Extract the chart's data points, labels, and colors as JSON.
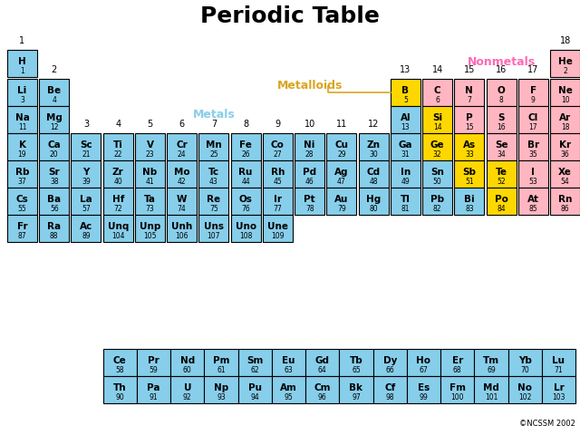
{
  "title": "Periodic Table",
  "background": "#ffffff",
  "colors": {
    "metal": "#87CEEB",
    "metalloid": "#FFD700",
    "nonmetal": "#FFB6C1"
  },
  "label_metals": "Metals",
  "label_metals_color": "#87CEEB",
  "label_metalloids": "Metalloids",
  "label_metalloids_color": "#DAA520",
  "label_nonmetals": "Nonmetals",
  "label_nonmetals_color": "#FF69B4",
  "credit": "©NCSSM 2002",
  "elements": [
    {
      "sym": "H",
      "num": "1",
      "row": 1,
      "col": 1,
      "type": "metal"
    },
    {
      "sym": "He",
      "num": "2",
      "row": 1,
      "col": 18,
      "type": "nonmetal"
    },
    {
      "sym": "Li",
      "num": "3",
      "row": 2,
      "col": 1,
      "type": "metal"
    },
    {
      "sym": "Be",
      "num": "4",
      "row": 2,
      "col": 2,
      "type": "metal"
    },
    {
      "sym": "B",
      "num": "5",
      "row": 2,
      "col": 13,
      "type": "metalloid"
    },
    {
      "sym": "C",
      "num": "6",
      "row": 2,
      "col": 14,
      "type": "nonmetal"
    },
    {
      "sym": "N",
      "num": "7",
      "row": 2,
      "col": 15,
      "type": "nonmetal"
    },
    {
      "sym": "O",
      "num": "8",
      "row": 2,
      "col": 16,
      "type": "nonmetal"
    },
    {
      "sym": "F",
      "num": "9",
      "row": 2,
      "col": 17,
      "type": "nonmetal"
    },
    {
      "sym": "Ne",
      "num": "10",
      "row": 2,
      "col": 18,
      "type": "nonmetal"
    },
    {
      "sym": "Na",
      "num": "11",
      "row": 3,
      "col": 1,
      "type": "metal"
    },
    {
      "sym": "Mg",
      "num": "12",
      "row": 3,
      "col": 2,
      "type": "metal"
    },
    {
      "sym": "Al",
      "num": "13",
      "row": 3,
      "col": 13,
      "type": "metal"
    },
    {
      "sym": "Si",
      "num": "14",
      "row": 3,
      "col": 14,
      "type": "metalloid"
    },
    {
      "sym": "P",
      "num": "15",
      "row": 3,
      "col": 15,
      "type": "nonmetal"
    },
    {
      "sym": "S",
      "num": "16",
      "row": 3,
      "col": 16,
      "type": "nonmetal"
    },
    {
      "sym": "Cl",
      "num": "17",
      "row": 3,
      "col": 17,
      "type": "nonmetal"
    },
    {
      "sym": "Ar",
      "num": "18",
      "row": 3,
      "col": 18,
      "type": "nonmetal"
    },
    {
      "sym": "K",
      "num": "19",
      "row": 4,
      "col": 1,
      "type": "metal"
    },
    {
      "sym": "Ca",
      "num": "20",
      "row": 4,
      "col": 2,
      "type": "metal"
    },
    {
      "sym": "Sc",
      "num": "21",
      "row": 4,
      "col": 3,
      "type": "metal"
    },
    {
      "sym": "Ti",
      "num": "22",
      "row": 4,
      "col": 4,
      "type": "metal"
    },
    {
      "sym": "V",
      "num": "23",
      "row": 4,
      "col": 5,
      "type": "metal"
    },
    {
      "sym": "Cr",
      "num": "24",
      "row": 4,
      "col": 6,
      "type": "metal"
    },
    {
      "sym": "Mn",
      "num": "25",
      "row": 4,
      "col": 7,
      "type": "metal"
    },
    {
      "sym": "Fe",
      "num": "26",
      "row": 4,
      "col": 8,
      "type": "metal"
    },
    {
      "sym": "Co",
      "num": "27",
      "row": 4,
      "col": 9,
      "type": "metal"
    },
    {
      "sym": "Ni",
      "num": "28",
      "row": 4,
      "col": 10,
      "type": "metal"
    },
    {
      "sym": "Cu",
      "num": "29",
      "row": 4,
      "col": 11,
      "type": "metal"
    },
    {
      "sym": "Zn",
      "num": "30",
      "row": 4,
      "col": 12,
      "type": "metal"
    },
    {
      "sym": "Ga",
      "num": "31",
      "row": 4,
      "col": 13,
      "type": "metal"
    },
    {
      "sym": "Ge",
      "num": "32",
      "row": 4,
      "col": 14,
      "type": "metalloid"
    },
    {
      "sym": "As",
      "num": "33",
      "row": 4,
      "col": 15,
      "type": "metalloid"
    },
    {
      "sym": "Se",
      "num": "34",
      "row": 4,
      "col": 16,
      "type": "nonmetal"
    },
    {
      "sym": "Br",
      "num": "35",
      "row": 4,
      "col": 17,
      "type": "nonmetal"
    },
    {
      "sym": "Kr",
      "num": "36",
      "row": 4,
      "col": 18,
      "type": "nonmetal"
    },
    {
      "sym": "Rb",
      "num": "37",
      "row": 5,
      "col": 1,
      "type": "metal"
    },
    {
      "sym": "Sr",
      "num": "38",
      "row": 5,
      "col": 2,
      "type": "metal"
    },
    {
      "sym": "Y",
      "num": "39",
      "row": 5,
      "col": 3,
      "type": "metal"
    },
    {
      "sym": "Zr",
      "num": "40",
      "row": 5,
      "col": 4,
      "type": "metal"
    },
    {
      "sym": "Nb",
      "num": "41",
      "row": 5,
      "col": 5,
      "type": "metal"
    },
    {
      "sym": "Mo",
      "num": "42",
      "row": 5,
      "col": 6,
      "type": "metal"
    },
    {
      "sym": "Tc",
      "num": "43",
      "row": 5,
      "col": 7,
      "type": "metal"
    },
    {
      "sym": "Ru",
      "num": "44",
      "row": 5,
      "col": 8,
      "type": "metal"
    },
    {
      "sym": "Rh",
      "num": "45",
      "row": 5,
      "col": 9,
      "type": "metal"
    },
    {
      "sym": "Pd",
      "num": "46",
      "row": 5,
      "col": 10,
      "type": "metal"
    },
    {
      "sym": "Ag",
      "num": "47",
      "row": 5,
      "col": 11,
      "type": "metal"
    },
    {
      "sym": "Cd",
      "num": "48",
      "row": 5,
      "col": 12,
      "type": "metal"
    },
    {
      "sym": "In",
      "num": "49",
      "row": 5,
      "col": 13,
      "type": "metal"
    },
    {
      "sym": "Sn",
      "num": "50",
      "row": 5,
      "col": 14,
      "type": "metal"
    },
    {
      "sym": "Sb",
      "num": "51",
      "row": 5,
      "col": 15,
      "type": "metalloid"
    },
    {
      "sym": "Te",
      "num": "52",
      "row": 5,
      "col": 16,
      "type": "metalloid"
    },
    {
      "sym": "I",
      "num": "53",
      "row": 5,
      "col": 17,
      "type": "nonmetal"
    },
    {
      "sym": "Xe",
      "num": "54",
      "row": 5,
      "col": 18,
      "type": "nonmetal"
    },
    {
      "sym": "Cs",
      "num": "55",
      "row": 6,
      "col": 1,
      "type": "metal"
    },
    {
      "sym": "Ba",
      "num": "56",
      "row": 6,
      "col": 2,
      "type": "metal"
    },
    {
      "sym": "La",
      "num": "57",
      "row": 6,
      "col": 3,
      "type": "metal"
    },
    {
      "sym": "Hf",
      "num": "72",
      "row": 6,
      "col": 4,
      "type": "metal"
    },
    {
      "sym": "Ta",
      "num": "73",
      "row": 6,
      "col": 5,
      "type": "metal"
    },
    {
      "sym": "W",
      "num": "74",
      "row": 6,
      "col": 6,
      "type": "metal"
    },
    {
      "sym": "Re",
      "num": "75",
      "row": 6,
      "col": 7,
      "type": "metal"
    },
    {
      "sym": "Os",
      "num": "76",
      "row": 6,
      "col": 8,
      "type": "metal"
    },
    {
      "sym": "Ir",
      "num": "77",
      "row": 6,
      "col": 9,
      "type": "metal"
    },
    {
      "sym": "Pt",
      "num": "78",
      "row": 6,
      "col": 10,
      "type": "metal"
    },
    {
      "sym": "Au",
      "num": "79",
      "row": 6,
      "col": 11,
      "type": "metal"
    },
    {
      "sym": "Hg",
      "num": "80",
      "row": 6,
      "col": 12,
      "type": "metal"
    },
    {
      "sym": "Tl",
      "num": "81",
      "row": 6,
      "col": 13,
      "type": "metal"
    },
    {
      "sym": "Pb",
      "num": "82",
      "row": 6,
      "col": 14,
      "type": "metal"
    },
    {
      "sym": "Bi",
      "num": "83",
      "row": 6,
      "col": 15,
      "type": "metal"
    },
    {
      "sym": "Po",
      "num": "84",
      "row": 6,
      "col": 16,
      "type": "metalloid"
    },
    {
      "sym": "At",
      "num": "85",
      "row": 6,
      "col": 17,
      "type": "nonmetal"
    },
    {
      "sym": "Rn",
      "num": "86",
      "row": 6,
      "col": 18,
      "type": "nonmetal"
    },
    {
      "sym": "Fr",
      "num": "87",
      "row": 7,
      "col": 1,
      "type": "metal"
    },
    {
      "sym": "Ra",
      "num": "88",
      "row": 7,
      "col": 2,
      "type": "metal"
    },
    {
      "sym": "Ac",
      "num": "89",
      "row": 7,
      "col": 3,
      "type": "metal"
    },
    {
      "sym": "Unq",
      "num": "104",
      "row": 7,
      "col": 4,
      "type": "metal"
    },
    {
      "sym": "Unp",
      "num": "105",
      "row": 7,
      "col": 5,
      "type": "metal"
    },
    {
      "sym": "Unh",
      "num": "106",
      "row": 7,
      "col": 6,
      "type": "metal"
    },
    {
      "sym": "Uns",
      "num": "107",
      "row": 7,
      "col": 7,
      "type": "metal"
    },
    {
      "sym": "Uno",
      "num": "108",
      "row": 7,
      "col": 8,
      "type": "metal"
    },
    {
      "sym": "Une",
      "num": "109",
      "row": 7,
      "col": 9,
      "type": "metal"
    },
    {
      "sym": "Ce",
      "num": "58",
      "row": 9,
      "col": 4,
      "type": "metal"
    },
    {
      "sym": "Pr",
      "num": "59",
      "row": 9,
      "col": 5,
      "type": "metal"
    },
    {
      "sym": "Nd",
      "num": "60",
      "row": 9,
      "col": 6,
      "type": "metal"
    },
    {
      "sym": "Pm",
      "num": "61",
      "row": 9,
      "col": 7,
      "type": "metal"
    },
    {
      "sym": "Sm",
      "num": "62",
      "row": 9,
      "col": 8,
      "type": "metal"
    },
    {
      "sym": "Eu",
      "num": "63",
      "row": 9,
      "col": 9,
      "type": "metal"
    },
    {
      "sym": "Gd",
      "num": "64",
      "row": 9,
      "col": 10,
      "type": "metal"
    },
    {
      "sym": "Tb",
      "num": "65",
      "row": 9,
      "col": 11,
      "type": "metal"
    },
    {
      "sym": "Dy",
      "num": "66",
      "row": 9,
      "col": 12,
      "type": "metal"
    },
    {
      "sym": "Ho",
      "num": "67",
      "row": 9,
      "col": 13,
      "type": "metal"
    },
    {
      "sym": "Er",
      "num": "68",
      "row": 9,
      "col": 14,
      "type": "metal"
    },
    {
      "sym": "Tm",
      "num": "69",
      "row": 9,
      "col": 15,
      "type": "metal"
    },
    {
      "sym": "Yb",
      "num": "70",
      "row": 9,
      "col": 16,
      "type": "metal"
    },
    {
      "sym": "Lu",
      "num": "71",
      "row": 9,
      "col": 17,
      "type": "metal"
    },
    {
      "sym": "Th",
      "num": "90",
      "row": 10,
      "col": 4,
      "type": "metal"
    },
    {
      "sym": "Pa",
      "num": "91",
      "row": 10,
      "col": 5,
      "type": "metal"
    },
    {
      "sym": "U",
      "num": "92",
      "row": 10,
      "col": 6,
      "type": "metal"
    },
    {
      "sym": "Np",
      "num": "93",
      "row": 10,
      "col": 7,
      "type": "metal"
    },
    {
      "sym": "Pu",
      "num": "94",
      "row": 10,
      "col": 8,
      "type": "metal"
    },
    {
      "sym": "Am",
      "num": "95",
      "row": 10,
      "col": 9,
      "type": "metal"
    },
    {
      "sym": "Cm",
      "num": "96",
      "row": 10,
      "col": 10,
      "type": "metal"
    },
    {
      "sym": "Bk",
      "num": "97",
      "row": 10,
      "col": 11,
      "type": "metal"
    },
    {
      "sym": "Cf",
      "num": "98",
      "row": 10,
      "col": 12,
      "type": "metal"
    },
    {
      "sym": "Es",
      "num": "99",
      "row": 10,
      "col": 13,
      "type": "metal"
    },
    {
      "sym": "Fm",
      "num": "100",
      "row": 10,
      "col": 14,
      "type": "metal"
    },
    {
      "sym": "Md",
      "num": "101",
      "row": 10,
      "col": 15,
      "type": "metal"
    },
    {
      "sym": "No",
      "num": "102",
      "row": 10,
      "col": 16,
      "type": "metal"
    },
    {
      "sym": "Lr",
      "num": "103",
      "row": 10,
      "col": 17,
      "type": "metal"
    }
  ]
}
